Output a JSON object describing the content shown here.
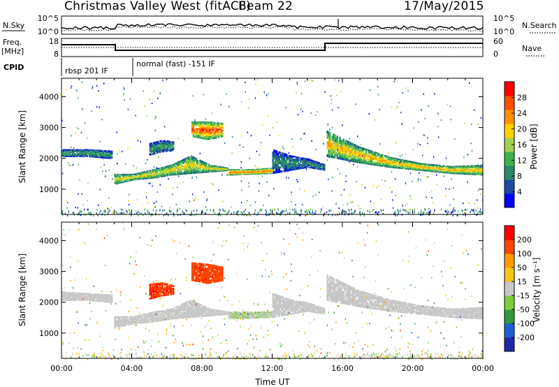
{
  "header": {
    "title": "Christmas Valley West (fitACF)",
    "beam": "Beam 22",
    "date": "17/May/2015"
  },
  "top_panels": {
    "nsky_label": "N.Sky",
    "nsearch_label": "N.Search",
    "noise_ticks": [
      "10^5",
      "10^0"
    ],
    "freq_label_1": "Freq.",
    "freq_label_2": "[MHz]",
    "freq_ticks": [
      "18",
      "8"
    ],
    "nave_label": "Nave",
    "nave_ticks": [
      "60",
      "0"
    ],
    "cpid_label": "CPID",
    "cpid_segments": [
      {
        "label": "rbsp 201 IF",
        "start_hour": 0.2
      },
      {
        "label": "normal (fast) -151 IF",
        "start_hour": 4.1
      }
    ]
  },
  "colors": {
    "power_scale": [
      "#0000ff",
      "#1a4aa8",
      "#2d8a6a",
      "#3cb44b",
      "#a0d050",
      "#ffd000",
      "#ff9000",
      "#ff5000",
      "#ff0000"
    ],
    "velocity_scale": [
      "#1e2aa8",
      "#1f5fd6",
      "#2f9a3c",
      "#7ccf3a",
      "#c8c8c8",
      "#f5c518",
      "#ff9a00",
      "#ff4500",
      "#ff0000"
    ]
  },
  "chart_data": [
    {
      "type": "heatmap",
      "name": "power",
      "ylabel": "Slant Range [km]",
      "xlim": [
        0,
        24
      ],
      "ylim": [
        180,
        4600
      ],
      "yticks": [
        "1000",
        "2000",
        "3000",
        "4000"
      ],
      "ytick_values": [
        1000,
        2000,
        3000,
        4000
      ],
      "colorbar_label": "Power [dB]",
      "colorbar_ticks": [
        "28",
        "24",
        "20",
        "16",
        "12",
        "8",
        "4"
      ],
      "colorbar_tick_values": [
        28,
        24,
        20,
        16,
        12,
        8,
        4
      ],
      "colorbar_range": [
        0,
        32
      ],
      "bands": [
        {
          "x": [
            0,
            2.9
          ],
          "ylow": [
            2050,
            2050,
            1980
          ],
          "yhigh": [
            2300,
            2300,
            2250
          ],
          "level": 10
        },
        {
          "x": [
            3.0,
            9.5
          ],
          "ylow": [
            1150,
            1300,
            1350,
            1450,
            1500,
            1550,
            1600
          ],
          "yhigh": [
            1500,
            1500,
            1650,
            1800,
            2100,
            1800,
            1700
          ],
          "level": 18
        },
        {
          "x": [
            9.5,
            12.0
          ],
          "ylow": [
            1450,
            1480,
            1500
          ],
          "yhigh": [
            1650,
            1650,
            1700
          ],
          "level": 24
        },
        {
          "x": [
            12.0,
            15.0
          ],
          "ylow": [
            1500,
            1600,
            1700,
            1600
          ],
          "yhigh": [
            2300,
            2100,
            2000,
            1800
          ],
          "level": 9
        },
        {
          "x": [
            15.1,
            24
          ],
          "ylow": [
            2050,
            1850,
            1700,
            1600,
            1500,
            1450
          ],
          "yhigh": [
            2900,
            2400,
            2050,
            1850,
            1750,
            1800
          ],
          "level": 20
        },
        {
          "x": [
            7.4,
            9.2
          ],
          "ylow": [
            2700,
            2600,
            2700
          ],
          "yhigh": [
            3200,
            3200,
            3150
          ],
          "level": 26
        },
        {
          "x": [
            5.0,
            6.4
          ],
          "ylow": [
            2100,
            2200,
            2250
          ],
          "yhigh": [
            2500,
            2600,
            2550
          ],
          "level": 10
        }
      ]
    },
    {
      "type": "heatmap",
      "name": "velocity",
      "ylabel": "Slant Range [km]",
      "xlabel": "Time UT",
      "xlim": [
        0,
        24
      ],
      "ylim": [
        180,
        4600
      ],
      "xticks": [
        "00:00",
        "04:00",
        "08:00",
        "12:00",
        "16:00",
        "20:00",
        "00:00"
      ],
      "xtick_values": [
        0,
        4,
        8,
        12,
        16,
        20,
        24
      ],
      "yticks": [
        "1000",
        "2000",
        "3000",
        "4000"
      ],
      "ytick_values": [
        1000,
        2000,
        3000,
        4000
      ],
      "colorbar_label": "Velocity [m s⁻¹]",
      "colorbar_ticks": [
        "200",
        "100",
        "50",
        "15",
        "-15",
        "-50",
        "-100",
        "-200"
      ],
      "colorbar_tick_values": [
        200,
        100,
        50,
        15,
        -15,
        -50,
        -100,
        -200
      ],
      "colorbar_range": [
        -250,
        250
      ],
      "bands": [
        {
          "x": [
            0,
            2.9
          ],
          "ylow": [
            2050,
            2050,
            1980
          ],
          "yhigh": [
            2350,
            2300,
            2250
          ],
          "level": 0
        },
        {
          "x": [
            3.0,
            9.5
          ],
          "ylow": [
            1150,
            1300,
            1350,
            1450,
            1500,
            1550,
            1600
          ],
          "yhigh": [
            1550,
            1550,
            1700,
            1800,
            2100,
            1800,
            1700
          ],
          "level": 0
        },
        {
          "x": [
            9.5,
            12.0
          ],
          "ylow": [
            1450,
            1480,
            1500
          ],
          "yhigh": [
            1700,
            1700,
            1700
          ],
          "level": -20
        },
        {
          "x": [
            12.0,
            15.0
          ],
          "ylow": [
            1500,
            1600,
            1700,
            1600
          ],
          "yhigh": [
            2300,
            2100,
            2000,
            1800
          ],
          "level": 0
        },
        {
          "x": [
            15.1,
            24
          ],
          "ylow": [
            2050,
            1850,
            1700,
            1600,
            1500,
            1450
          ],
          "yhigh": [
            2900,
            2400,
            2100,
            1900,
            1800,
            1850
          ],
          "level": 0
        },
        {
          "x": [
            7.4,
            9.2
          ],
          "ylow": [
            2700,
            2600,
            2700
          ],
          "yhigh": [
            3300,
            3250,
            3150
          ],
          "level": 170
        },
        {
          "x": [
            5.0,
            6.4
          ],
          "ylow": [
            2100,
            2200,
            2250
          ],
          "yhigh": [
            2600,
            2650,
            2550
          ],
          "level": 180
        }
      ]
    }
  ]
}
